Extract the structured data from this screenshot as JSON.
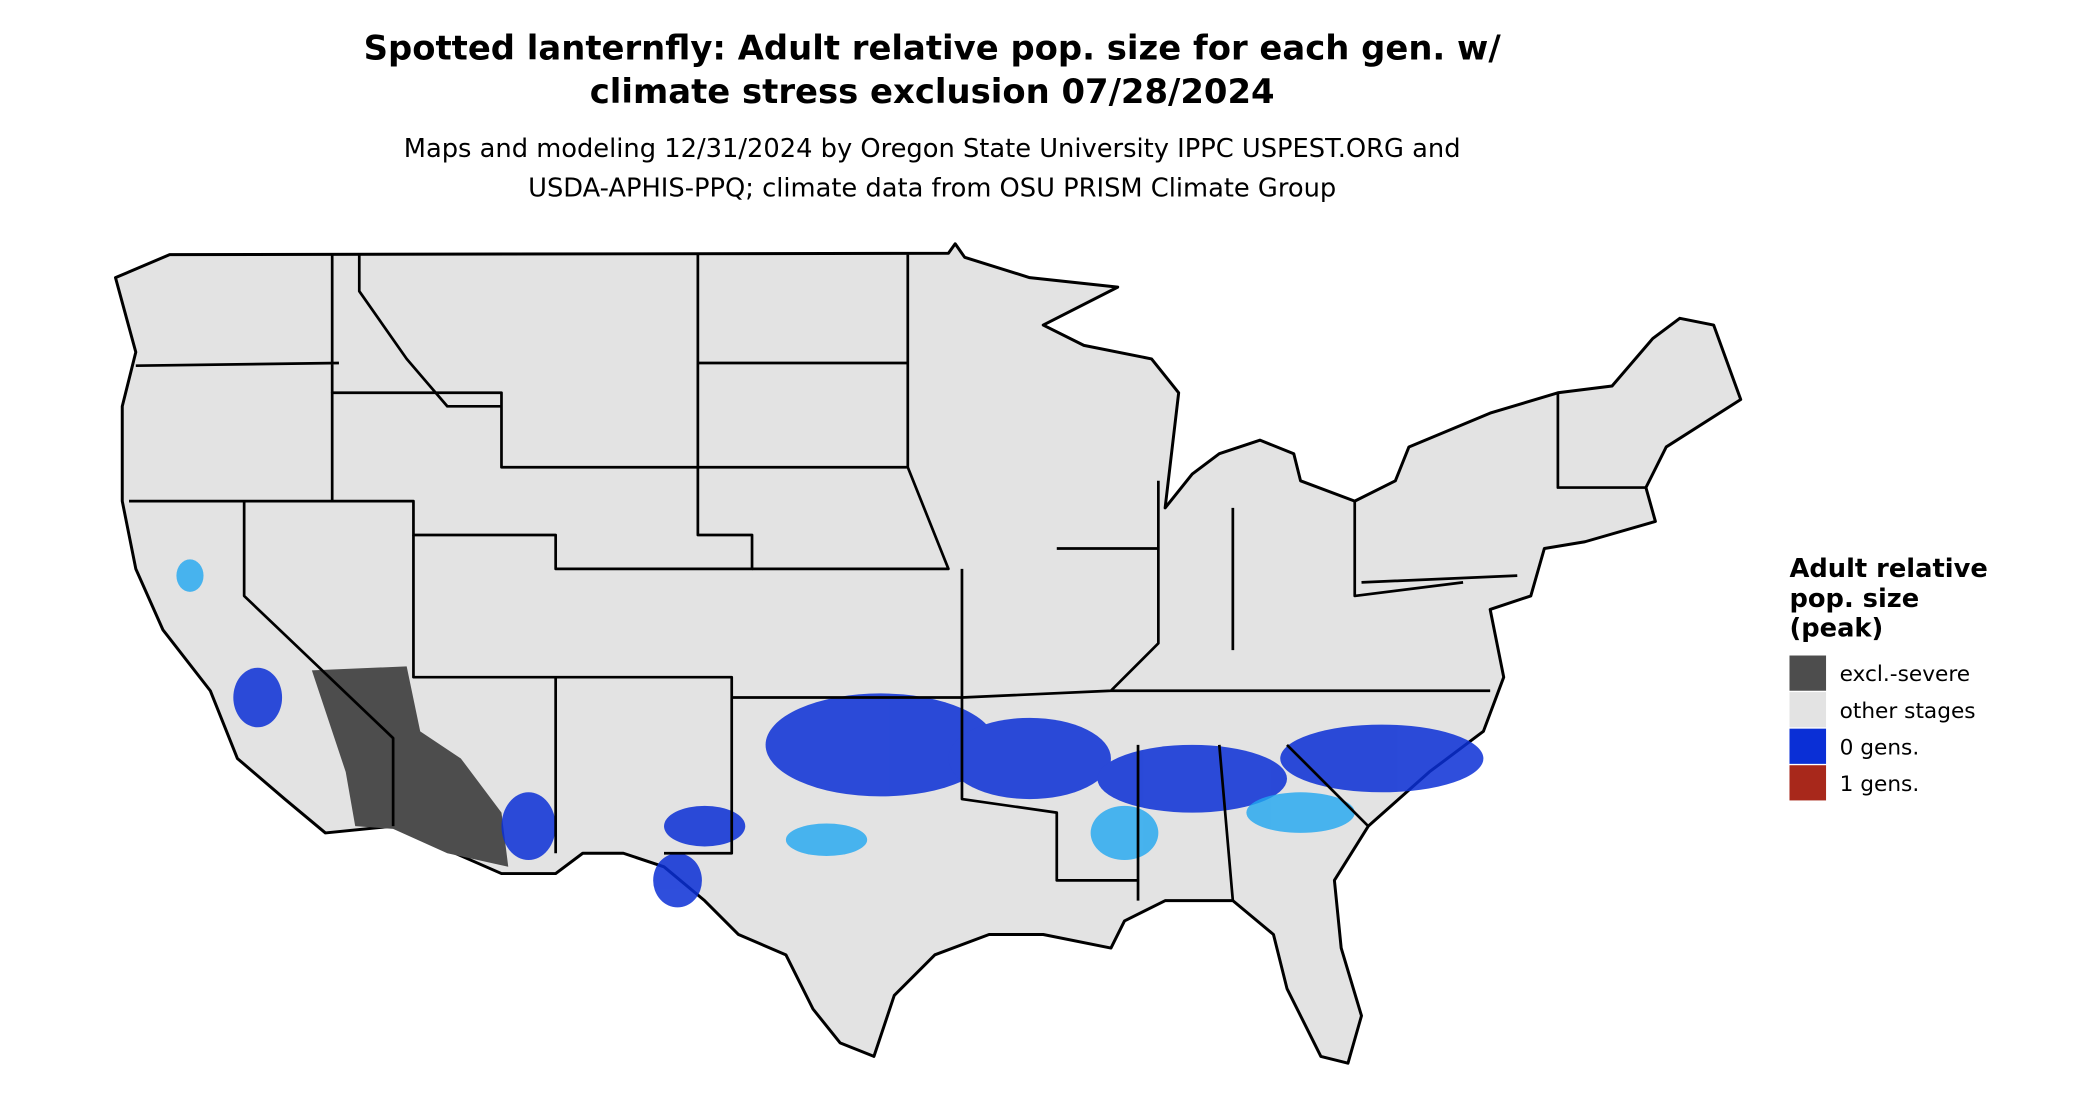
{
  "title": [
    "Spotted lanternfly: Adult relative pop. size for each gen. w/",
    "climate stress exclusion 07/28/2024"
  ],
  "subtitle": [
    "Maps and modeling 12/31/2024 by Oregon State University IPPC USPEST.ORG and",
    "USDA-APHIS-PPQ; climate data from OSU PRISM Climate Group"
  ],
  "legend": {
    "title": [
      "Adult relative",
      "pop. size",
      "(peak)"
    ],
    "items": [
      {
        "label": "excl.-severe",
        "color": "#4d4d4d"
      },
      {
        "label": "other stages",
        "color": "#e3e3e3"
      },
      {
        "label": "0 gens.",
        "color": "#0a2fd6"
      },
      {
        "label": "1 gens.",
        "color": "#a8281b"
      }
    ]
  }
}
